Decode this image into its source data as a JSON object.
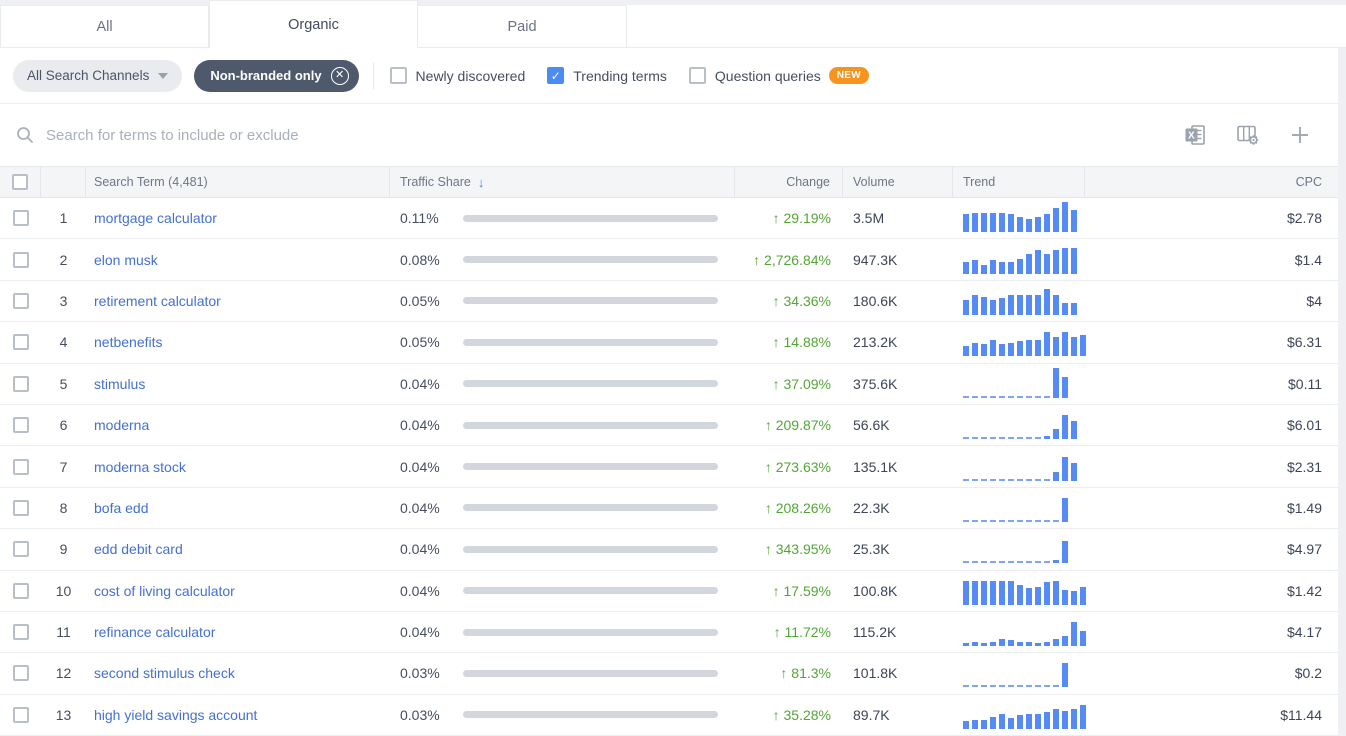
{
  "tabs": [
    {
      "label": "All",
      "active": false
    },
    {
      "label": "Organic",
      "active": true
    },
    {
      "label": "Paid",
      "active": false
    }
  ],
  "filters": {
    "channel_dropdown": "All Search Channels",
    "active_chip": "Non-branded only",
    "checkboxes": [
      {
        "label": "Newly discovered",
        "checked": false,
        "badge": null
      },
      {
        "label": "Trending terms",
        "checked": true,
        "badge": null
      },
      {
        "label": "Question queries",
        "checked": false,
        "badge": "NEW"
      }
    ]
  },
  "search": {
    "placeholder": "Search for terms to include or exclude"
  },
  "toolbar": {
    "icons": [
      "excel-export",
      "table-settings",
      "add-column"
    ]
  },
  "table": {
    "columns": {
      "term": "Search Term (4,481)",
      "traffic_share": "Traffic Share",
      "change": "Change",
      "volume": "Volume",
      "trend": "Trend",
      "cpc": "CPC"
    },
    "sort": {
      "column": "traffic_share",
      "direction": "desc",
      "arrow": "↓"
    },
    "change_direction_arrow": "↑",
    "rows": [
      {
        "rank": 1,
        "term": "mortgage calculator",
        "traffic_share": "0.11%",
        "change": "29.19%",
        "volume": "3.5M",
        "cpc": "$2.78",
        "trend": [
          6,
          6.5,
          6.5,
          6.5,
          6.5,
          6,
          5,
          4.5,
          5,
          6,
          8,
          10,
          7.5
        ]
      },
      {
        "rank": 2,
        "term": "elon musk",
        "traffic_share": "0.08%",
        "change": "2,726.84%",
        "volume": "947.3K",
        "cpc": "$1.4",
        "trend": [
          4,
          4.5,
          3,
          4.5,
          4,
          4,
          5,
          6.5,
          8,
          6.5,
          8,
          8.5,
          8.5
        ]
      },
      {
        "rank": 3,
        "term": "retirement calculator",
        "traffic_share": "0.05%",
        "change": "34.36%",
        "volume": "180.6K",
        "cpc": "$4",
        "trend": [
          5,
          6.5,
          6,
          5,
          5.5,
          6.5,
          6.5,
          6.5,
          6.5,
          8.5,
          6.5,
          4,
          4
        ]
      },
      {
        "rank": 4,
        "term": "netbenefits",
        "traffic_share": "0.05%",
        "change": "14.88%",
        "volume": "213.2K",
        "cpc": "$6.31",
        "trend": [
          3.5,
          4.5,
          4,
          5.5,
          4,
          4.5,
          5,
          5.5,
          5.5,
          8,
          6.5,
          8,
          6.5,
          7
        ]
      },
      {
        "rank": 5,
        "term": "stimulus",
        "traffic_share": "0.04%",
        "change": "37.09%",
        "volume": "375.6K",
        "cpc": "$0.11",
        "trend": [
          0.3,
          0.3,
          0.3,
          0.3,
          0.3,
          0.3,
          0.3,
          0.3,
          0.3,
          0.3,
          10,
          7
        ]
      },
      {
        "rank": 6,
        "term": "moderna",
        "traffic_share": "0.04%",
        "change": "209.87%",
        "volume": "56.6K",
        "cpc": "$6.01",
        "trend": [
          0.3,
          0.3,
          0.3,
          0.3,
          0.3,
          0.3,
          0.3,
          0.3,
          0.3,
          1.2,
          3.5,
          8,
          6
        ]
      },
      {
        "rank": 7,
        "term": "moderna stock",
        "traffic_share": "0.04%",
        "change": "273.63%",
        "volume": "135.1K",
        "cpc": "$2.31",
        "trend": [
          0.3,
          0.3,
          0.3,
          0.3,
          0.3,
          0.3,
          0.3,
          0.3,
          0.3,
          0.3,
          3,
          8,
          6
        ]
      },
      {
        "rank": 8,
        "term": "bofa edd",
        "traffic_share": "0.04%",
        "change": "208.26%",
        "volume": "22.3K",
        "cpc": "$1.49",
        "trend": [
          0.5,
          0.5,
          0.5,
          0.5,
          0.5,
          0.5,
          0.5,
          0.5,
          0.5,
          0.5,
          0.5,
          8
        ]
      },
      {
        "rank": 9,
        "term": "edd debit card",
        "traffic_share": "0.04%",
        "change": "343.95%",
        "volume": "25.3K",
        "cpc": "$4.97",
        "trend": [
          0.3,
          0.3,
          0.3,
          0.3,
          0.3,
          0.3,
          0.3,
          0.3,
          0.3,
          0.3,
          1,
          7.5
        ]
      },
      {
        "rank": 10,
        "term": "cost of living calculator",
        "traffic_share": "0.04%",
        "change": "17.59%",
        "volume": "100.8K",
        "cpc": "$1.42",
        "trend": [
          8,
          8,
          8,
          8,
          8,
          8,
          6.5,
          5.5,
          6,
          7.5,
          8,
          5,
          4.5,
          6
        ]
      },
      {
        "rank": 11,
        "term": "refinance calculator",
        "traffic_share": "0.04%",
        "change": "11.72%",
        "volume": "115.2K",
        "cpc": "$4.17",
        "trend": [
          1,
          1.5,
          1,
          1.5,
          2.5,
          2,
          1.5,
          1.5,
          1,
          1.5,
          2.5,
          3.5,
          8,
          5
        ]
      },
      {
        "rank": 12,
        "term": "second stimulus check",
        "traffic_share": "0.03%",
        "change": "81.3%",
        "volume": "101.8K",
        "cpc": "$0.2",
        "trend": [
          0.3,
          0.3,
          0.3,
          0.3,
          0.3,
          0.3,
          0.3,
          0.3,
          0.3,
          0.3,
          0.3,
          8
        ]
      },
      {
        "rank": 13,
        "term": "high yield savings account",
        "traffic_share": "0.03%",
        "change": "35.28%",
        "volume": "89.7K",
        "cpc": "$11.44",
        "trend": [
          2.5,
          3,
          3,
          4,
          5,
          3.5,
          4.5,
          5,
          5,
          5.5,
          6.5,
          6,
          6.5,
          8
        ]
      }
    ]
  },
  "colors": {
    "link_blue": "#4470d4",
    "trend_bar_blue": "#568af4",
    "change_green": "#53a636",
    "chip_dark": "#4e5a6c",
    "new_badge_orange": "#f7941d",
    "checkbox_checked_blue": "#4a8cf0",
    "share_bar_gray": "#d2d6dd"
  }
}
